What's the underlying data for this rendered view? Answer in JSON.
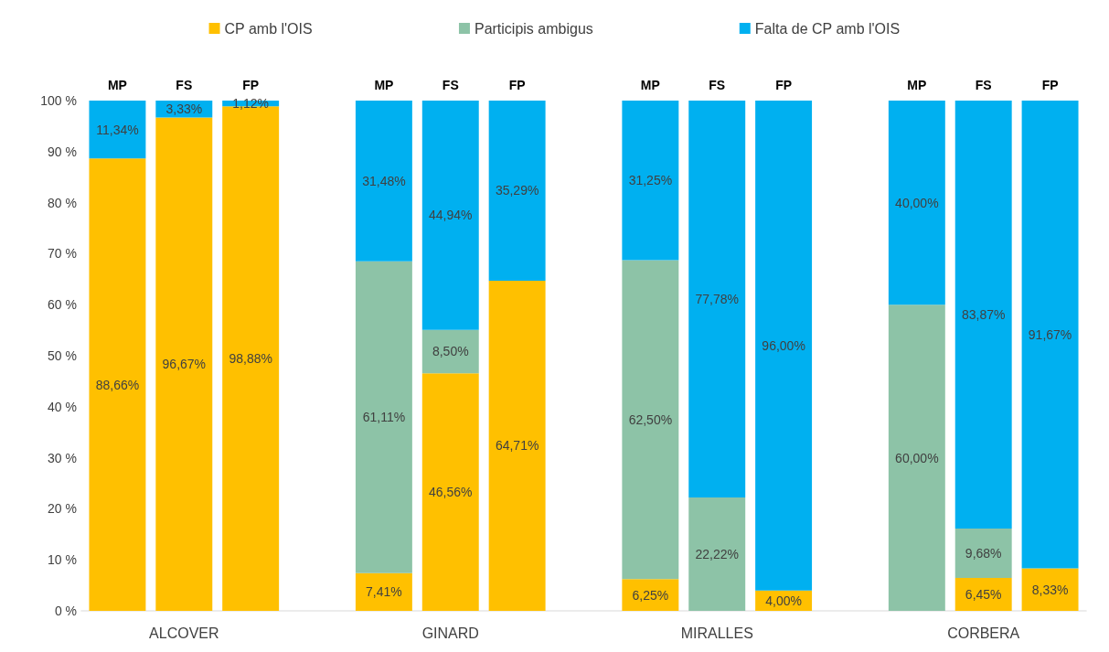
{
  "chart_data": {
    "type": "bar",
    "stacked": true,
    "legend": "top",
    "categories": [
      "MP",
      "FS",
      "FP",
      null,
      "MP",
      "FS",
      "FP",
      null,
      "MP",
      "FS",
      "FP",
      null,
      "MP",
      "FS",
      "FP"
    ],
    "series": [
      {
        "name": "CP amb l'OIS",
        "color": "#ffc000",
        "values": [
          88.66,
          96.67,
          98.88,
          null,
          7.41,
          46.56,
          64.71,
          null,
          6.25,
          0,
          4.0,
          null,
          0,
          6.45,
          8.33
        ],
        "value_labels": [
          "88,66%",
          "96,67%",
          "98,88%",
          null,
          "7,41%",
          "46,56%",
          "64,71%",
          null,
          "6,25%",
          null,
          "4,00%",
          null,
          null,
          "6,45%",
          "8,33%"
        ]
      },
      {
        "name": "Participis ambigus",
        "color": "#8dc3a7",
        "values": [
          0,
          0,
          0,
          null,
          61.11,
          8.5,
          0,
          null,
          62.5,
          22.22,
          0,
          null,
          60.0,
          9.68,
          0
        ],
        "value_labels": [
          null,
          null,
          null,
          null,
          "61,11%",
          "8,50%",
          null,
          null,
          "62,50%",
          "22,22%",
          null,
          null,
          "60,00%",
          "9,68%",
          null
        ]
      },
      {
        "name": "Falta de CP amb l'OIS",
        "color": "#00b0f0",
        "values": [
          11.34,
          3.33,
          1.12,
          null,
          31.48,
          44.94,
          35.29,
          null,
          31.25,
          77.78,
          96.0,
          null,
          40.0,
          83.87,
          91.67
        ],
        "value_labels": [
          "11,34%",
          "3,33%",
          "1,12%",
          null,
          "31,48%",
          "44,94%",
          "35,29%",
          null,
          "31,25%",
          "77,78%",
          "96,00%",
          null,
          "40,00%",
          "83,87%",
          "91,67%"
        ]
      }
    ],
    "ylim": [
      0,
      100
    ],
    "yticks": [
      {
        "value": 0,
        "label": "0 %"
      },
      {
        "value": 10,
        "label": "10 %"
      },
      {
        "value": 20,
        "label": "20 %"
      },
      {
        "value": 30,
        "label": "30 %"
      },
      {
        "value": 40,
        "label": "40 %"
      },
      {
        "value": 50,
        "label": "50 %"
      },
      {
        "value": 60,
        "label": "60 %"
      },
      {
        "value": 70,
        "label": "70 %"
      },
      {
        "value": 80,
        "label": "80 %"
      },
      {
        "value": 90,
        "label": "90 %"
      },
      {
        "value": 100,
        "label": "100 %"
      }
    ],
    "grid": false,
    "annotations": [
      "ALCOVER",
      "GINARD",
      "MIRALLES",
      "CORBERA"
    ]
  }
}
